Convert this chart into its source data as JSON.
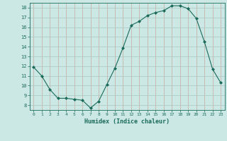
{
  "x": [
    0,
    1,
    2,
    3,
    4,
    5,
    6,
    7,
    8,
    9,
    10,
    11,
    12,
    13,
    14,
    15,
    16,
    17,
    18,
    19,
    20,
    21,
    22,
    23
  ],
  "y": [
    11.9,
    11.0,
    9.6,
    8.7,
    8.7,
    8.6,
    8.5,
    7.7,
    8.4,
    10.1,
    11.8,
    13.9,
    16.2,
    16.6,
    17.2,
    17.5,
    17.7,
    18.2,
    18.2,
    17.9,
    16.9,
    14.5,
    11.7,
    10.3
  ],
  "xlabel": "Humidex (Indice chaleur)",
  "bg_color": "#cce8e4",
  "line_color": "#1a6b5a",
  "marker_color": "#1a6b5a",
  "vgrid_color": "#c8a8a0",
  "hgrid_color": "#a8c8c4",
  "tick_color": "#1a6b5a",
  "xmin": -0.5,
  "xmax": 23.5,
  "ymin": 7.5,
  "ymax": 18.5,
  "yticks": [
    8,
    9,
    10,
    11,
    12,
    13,
    14,
    15,
    16,
    17,
    18
  ],
  "xticks": [
    0,
    1,
    2,
    3,
    4,
    5,
    6,
    7,
    8,
    9,
    10,
    11,
    12,
    13,
    14,
    15,
    16,
    17,
    18,
    19,
    20,
    21,
    22,
    23
  ]
}
